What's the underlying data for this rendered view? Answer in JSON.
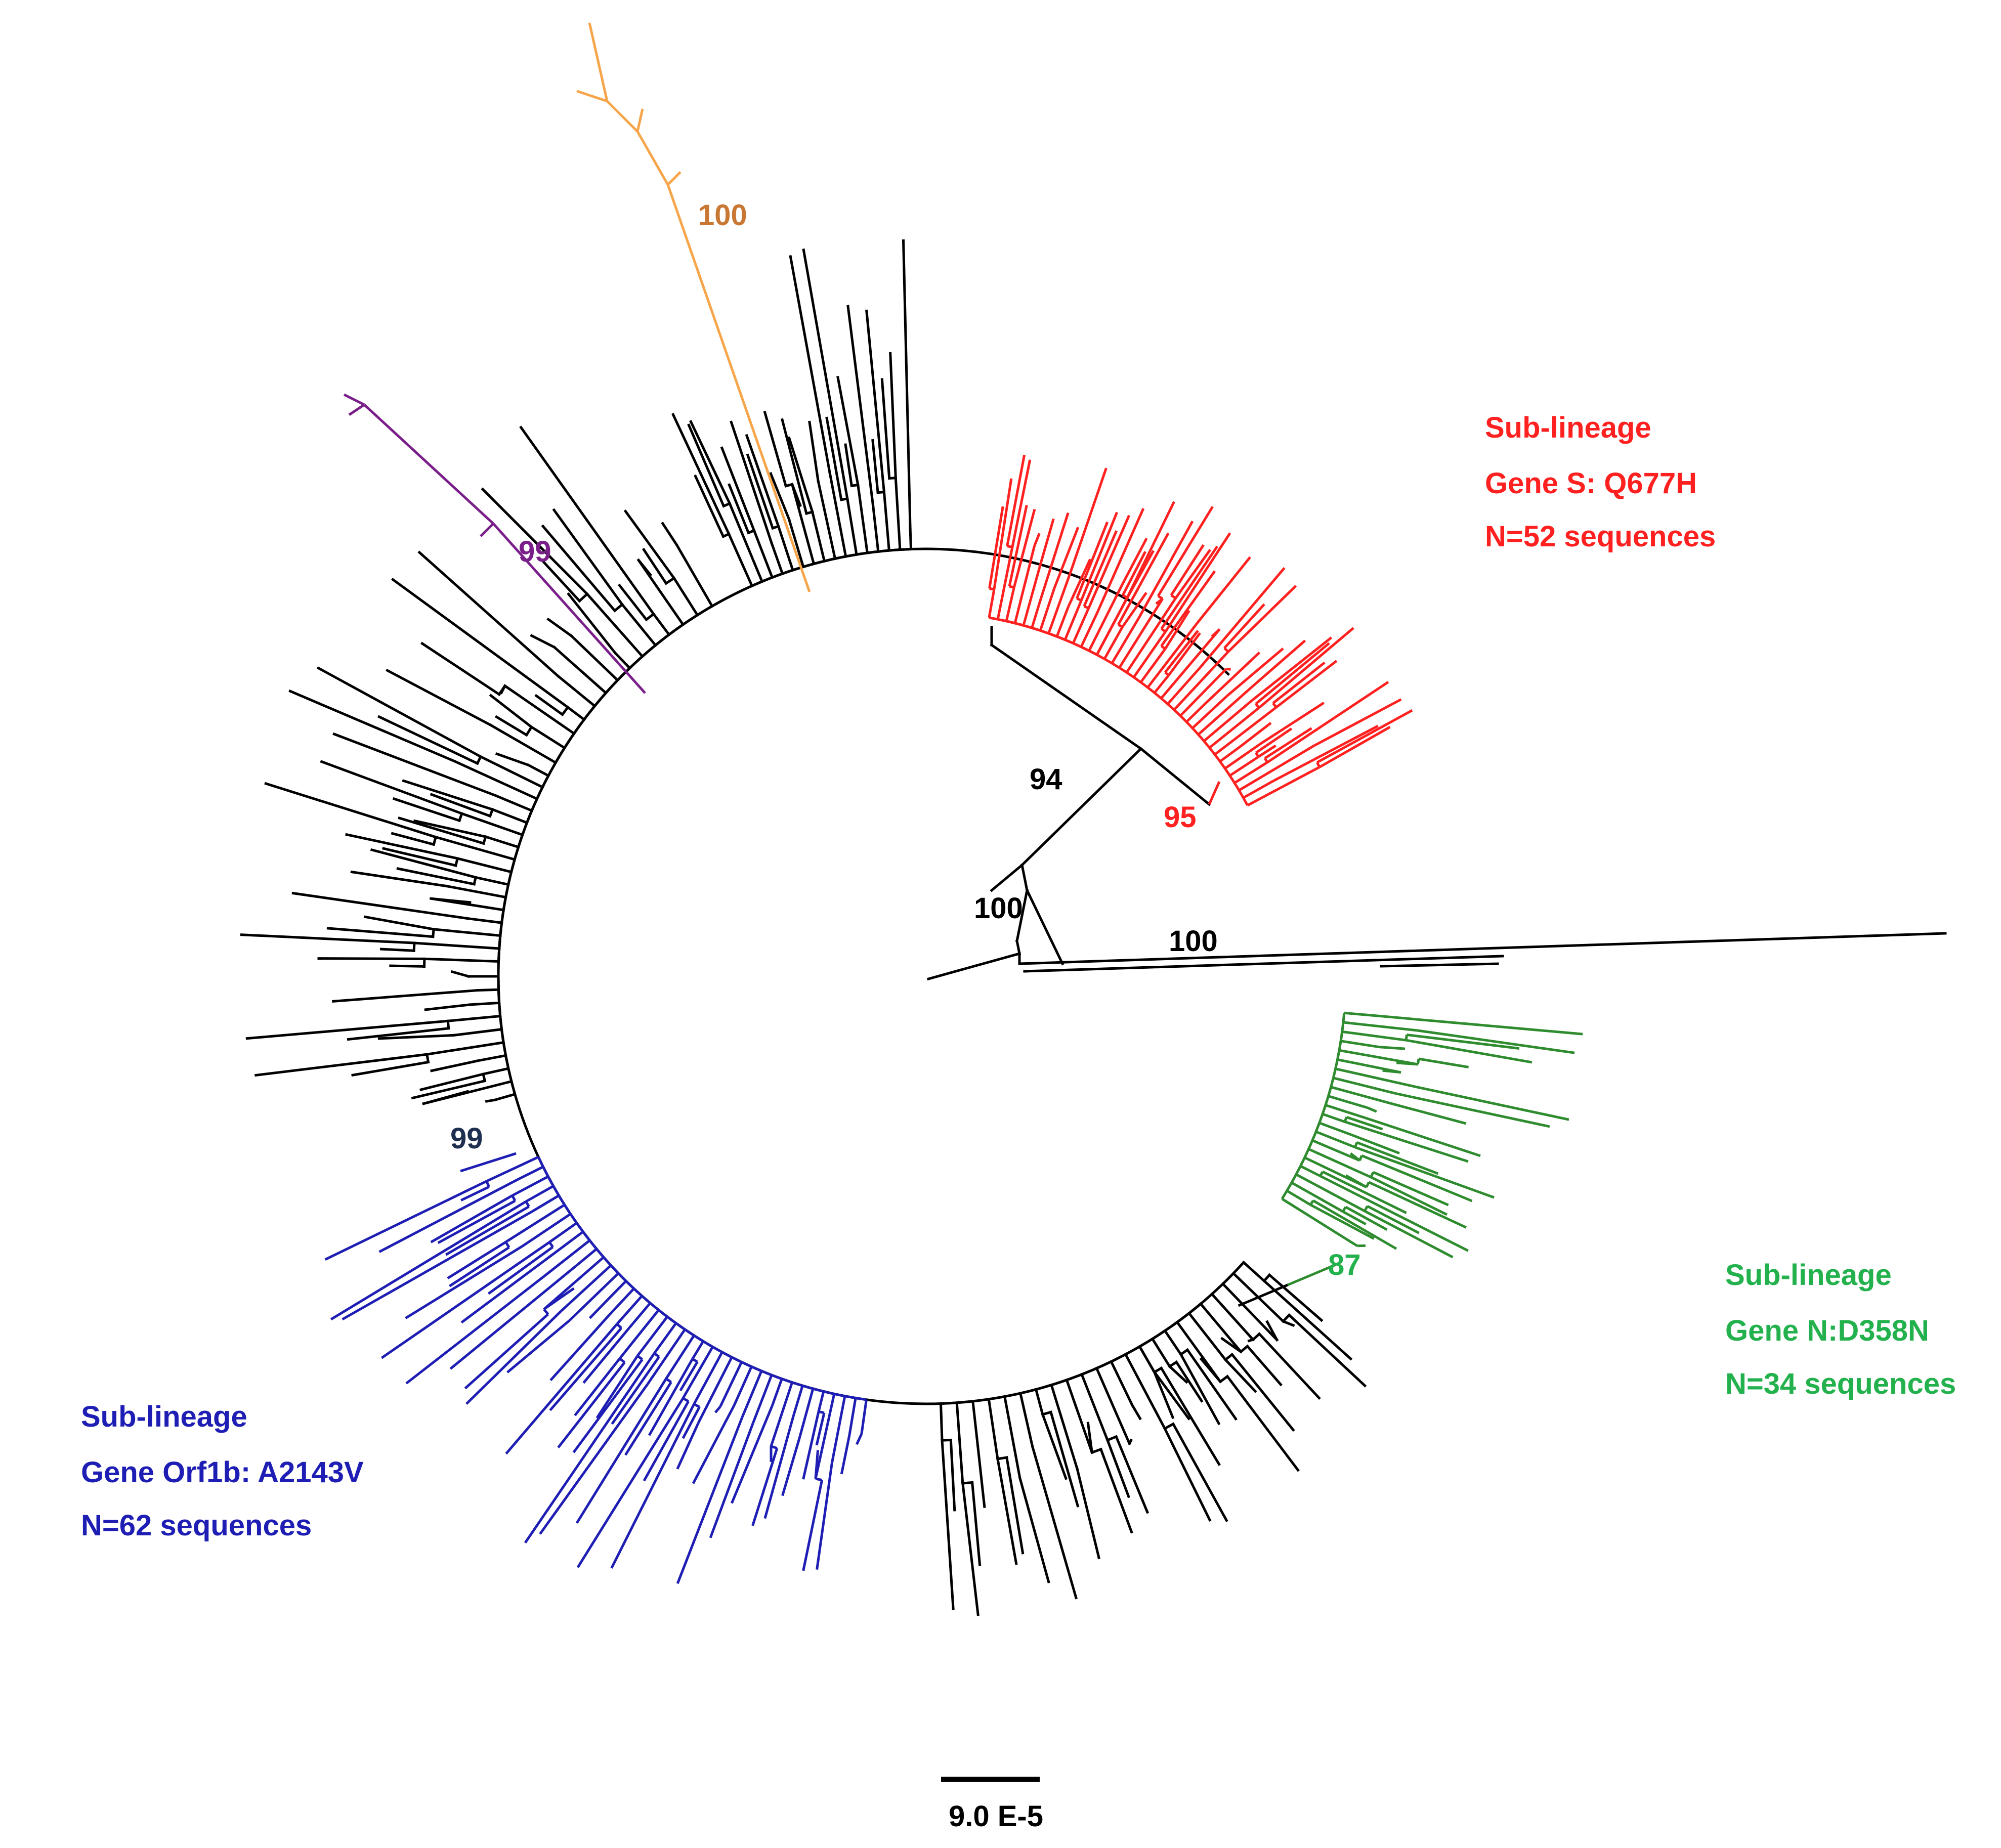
{
  "figure": {
    "type": "circular-phylogenetic-tree",
    "scale_bar_label": "9.0 E-5"
  },
  "colors": {
    "backbone": "#000000",
    "red": "#ff2020",
    "green": "#2e8b2e",
    "green_label": "#22b14c",
    "blue": "#1e1eb4",
    "orange": "#f7a54a",
    "orange_label": "#c87832",
    "purple": "#7a1f8a",
    "navy_label": "#1e2f50"
  },
  "sublineages": [
    {
      "id": "red",
      "title": "Sub-lineage",
      "gene": "Gene S: Q677H",
      "count": "N=52 sequences",
      "support": "95"
    },
    {
      "id": "green",
      "title": "Sub-lineage",
      "gene": "Gene N:D358N",
      "count": "N=34 sequences",
      "support": "87"
    },
    {
      "id": "blue",
      "title": "Sub-lineage",
      "gene": "Gene Orf1b: A2143V",
      "count": "N=62 sequences",
      "support": "99"
    }
  ],
  "bootstrap": {
    "orange_clade": "100",
    "purple_clade": "99",
    "node_94": "94",
    "node_100_inner": "100",
    "node_100_right": "100"
  }
}
